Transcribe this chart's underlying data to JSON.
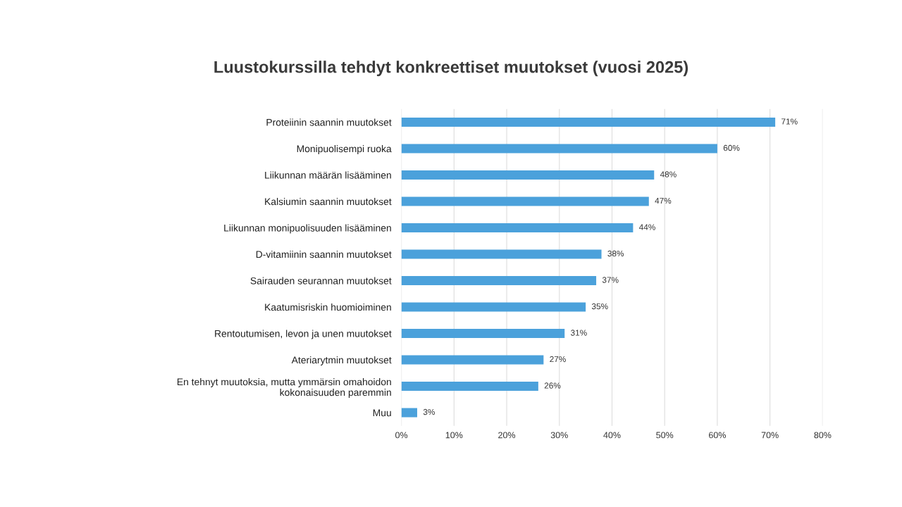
{
  "chart_data": {
    "type": "bar",
    "orientation": "horizontal",
    "title": "Luustokurssilla tehdyt konkreettiset muutokset (vuosi 2025)",
    "categories": [
      "Proteiinin saannin muutokset",
      "Monipuolisempi ruoka",
      "Liikunnan määrän lisääminen",
      "Kalsiumin saannin muutokset",
      "Liikunnan monipuolisuuden lisääminen",
      "D-vitamiinin saannin muutokset",
      "Sairauden seurannan muutokset",
      "Kaatumisriskin huomioiminen",
      "Rentoutumisen, levon ja unen muutokset",
      "Ateriarytmin muutokset",
      "En tehnyt muutoksia, mutta ymmärsin omahoidon\nkokonaisuuden paremmin",
      "Muu"
    ],
    "values": [
      71,
      60,
      48,
      47,
      44,
      38,
      37,
      35,
      31,
      27,
      26,
      3
    ],
    "value_labels": [
      "71%",
      "60%",
      "48%",
      "47%",
      "44%",
      "38%",
      "37%",
      "35%",
      "31%",
      "27%",
      "26%",
      "3%"
    ],
    "color": "#4ba1db",
    "xlim": [
      0,
      80
    ],
    "xticks": [
      {
        "value": 0,
        "label": "0%"
      },
      {
        "value": 10,
        "label": "10%"
      },
      {
        "value": 20,
        "label": "20%"
      },
      {
        "value": 30,
        "label": "30%"
      },
      {
        "value": 40,
        "label": "40%"
      },
      {
        "value": 50,
        "label": "50%"
      },
      {
        "value": 60,
        "label": "60%"
      },
      {
        "value": 70,
        "label": "70%"
      },
      {
        "value": 80,
        "label": "80%"
      }
    ],
    "grid": "x"
  }
}
